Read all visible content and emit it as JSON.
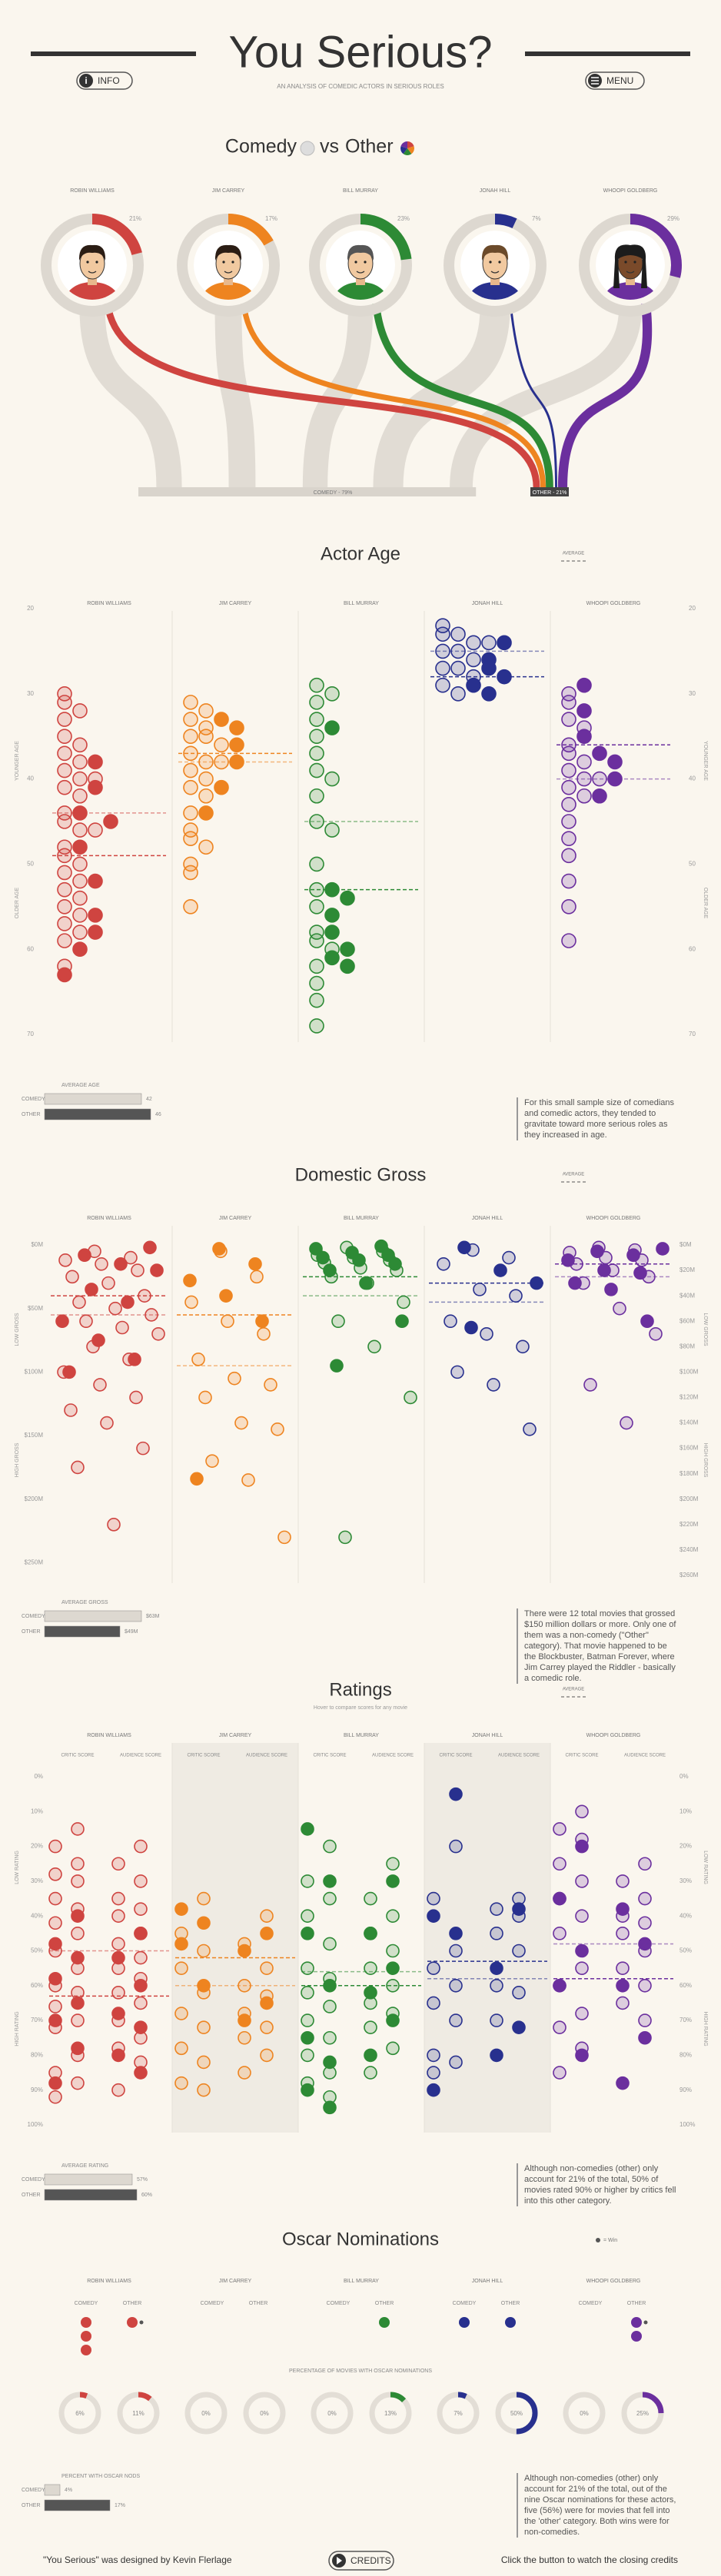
{
  "header": {
    "title": "You Serious?",
    "subtitle": "AN ANALYSIS OF COMEDIC ACTORS IN SERIOUS ROLES",
    "info": "INFO",
    "menu": "MENU"
  },
  "actors": [
    {
      "name": "ROBIN WILLIAMS",
      "color": "#cf4440"
    },
    {
      "name": "JIM CARREY",
      "color": "#ee8420"
    },
    {
      "name": "BILL MURRAY",
      "color": "#2d8a35"
    },
    {
      "name": "JONAH HILL",
      "color": "#28308e"
    },
    {
      "name": "WHOOPI GOLDBERG",
      "color": "#6b2f9e"
    }
  ],
  "comedy_vs_other": {
    "title_comedy": "Comedy",
    "title_vs": "vs",
    "title_other": "Other",
    "percent_other": [
      21,
      17,
      23,
      7,
      29
    ],
    "percent_labels": [
      "21%",
      "17%",
      "23%",
      "7%",
      "29%"
    ],
    "totals": [
      {
        "label": "COMEDY - 79%",
        "value": 79
      },
      {
        "label": "OTHER - 21%",
        "value": 21
      }
    ]
  },
  "actor_age": {
    "title": "Actor Age",
    "legend": "AVERAGE",
    "ylim": [
      20,
      70
    ],
    "yticks": [
      20,
      30,
      40,
      50,
      60,
      70
    ],
    "side_labels": [
      "YOUNGER AGE",
      "OLDER AGE"
    ],
    "series": [
      {
        "comedy": [
          30,
          31,
          32,
          33,
          35,
          36,
          37,
          38,
          39,
          40,
          40,
          41,
          42,
          44,
          45,
          46,
          46,
          48,
          49,
          50,
          51,
          52,
          53,
          54,
          55,
          56,
          57,
          58,
          59,
          62
        ],
        "other": [
          38,
          41,
          44,
          45,
          48,
          52,
          56,
          58,
          60,
          63
        ],
        "avg_comedy": 44,
        "avg_other": 49
      },
      {
        "comedy": [
          31,
          32,
          33,
          34,
          35,
          35,
          36,
          37,
          38,
          38,
          39,
          40,
          41,
          42,
          44,
          46,
          47,
          48,
          50,
          51,
          55
        ],
        "other": [
          33,
          34,
          36,
          38,
          41,
          44
        ],
        "avg_comedy": 38,
        "avg_other": 37
      },
      {
        "comedy": [
          29,
          30,
          31,
          33,
          35,
          37,
          39,
          40,
          42,
          45,
          46,
          50,
          53,
          55,
          58,
          59,
          60,
          62,
          64,
          66,
          69
        ],
        "other": [
          34,
          53,
          54,
          56,
          58,
          60,
          61,
          62
        ],
        "avg_comedy": 45,
        "avg_other": 53
      },
      {
        "comedy": [
          22,
          23,
          23,
          24,
          24,
          25,
          25,
          26,
          27,
          27,
          28,
          29,
          30
        ],
        "other": [
          24,
          26,
          27,
          28,
          29,
          30
        ],
        "avg_comedy": 25,
        "avg_other": 28
      },
      {
        "comedy": [
          30,
          31,
          33,
          34,
          36,
          37,
          38,
          39,
          40,
          40,
          41,
          42,
          43,
          45,
          47,
          49,
          52,
          55,
          59
        ],
        "other": [
          29,
          32,
          35,
          37,
          38,
          40,
          42
        ],
        "avg_comedy": 40,
        "avg_other": 36
      }
    ],
    "summary": {
      "title": "AVERAGE AGE",
      "rows": [
        {
          "name": "COMEDY",
          "value": 42
        },
        {
          "name": "OTHER",
          "value": 46
        }
      ]
    },
    "note": "For this small sample size of comedians and comedic actors, they tended to gravitate toward more serious roles as they increased in age."
  },
  "domestic_gross": {
    "title": "Domestic Gross",
    "legend": "AVERAGE",
    "ylim": [
      0,
      260
    ],
    "yticks": [
      {
        "value": 0,
        "label": "$0M"
      },
      {
        "value": 50,
        "label": "$50M"
      },
      {
        "value": 100,
        "label": "$100M"
      },
      {
        "value": 150,
        "label": "$150M"
      },
      {
        "value": 200,
        "label": "$200M"
      },
      {
        "value": 250,
        "label": "$250M"
      }
    ],
    "y2ticks": [
      {
        "value": 0,
        "label": "$0M"
      },
      {
        "value": 20,
        "label": "$20M"
      },
      {
        "value": 40,
        "label": "$40M"
      },
      {
        "value": 60,
        "label": "$60M"
      },
      {
        "value": 80,
        "label": "$80M"
      },
      {
        "value": 100,
        "label": "$100M"
      },
      {
        "value": 120,
        "label": "$120M"
      },
      {
        "value": 140,
        "label": "$140M"
      },
      {
        "value": 160,
        "label": "$160M"
      },
      {
        "value": 180,
        "label": "$180M"
      },
      {
        "value": 200,
        "label": "$200M"
      },
      {
        "value": 220,
        "label": "$220M"
      },
      {
        "value": 240,
        "label": "$240M"
      },
      {
        "value": 260,
        "label": "$260M"
      }
    ],
    "side_labels": [
      "LOW GROSS",
      "HIGH GROSS"
    ],
    "series": [
      {
        "comedy": [
          5,
          10,
          12,
          15,
          20,
          25,
          30,
          40,
          45,
          50,
          55,
          60,
          65,
          70,
          80,
          90,
          100,
          110,
          120,
          130,
          140,
          160,
          175,
          220
        ],
        "other": [
          2,
          8,
          15,
          20,
          35,
          45,
          60,
          75,
          90,
          100
        ],
        "avg_comedy": 55,
        "avg_other": 40
      },
      {
        "comedy": [
          5,
          25,
          45,
          60,
          70,
          90,
          105,
          110,
          120,
          140,
          145,
          170,
          185,
          230
        ],
        "other": [
          3,
          15,
          28,
          40,
          60,
          184
        ],
        "avg_comedy": 95,
        "avg_other": 55
      },
      {
        "comedy": [
          2,
          5,
          8,
          10,
          12,
          14,
          18,
          20,
          25,
          30,
          45,
          60,
          80,
          120,
          230
        ],
        "other": [
          1,
          3,
          6,
          8,
          10,
          12,
          15,
          20,
          30,
          60,
          95
        ],
        "avg_comedy": 40,
        "avg_other": 25
      },
      {
        "comedy": [
          4,
          10,
          15,
          35,
          40,
          60,
          70,
          80,
          100,
          110,
          145
        ],
        "other": [
          2,
          20,
          30,
          65
        ],
        "avg_comedy": 45,
        "avg_other": 30
      },
      {
        "comedy": [
          2,
          4,
          6,
          10,
          12,
          15,
          20,
          25,
          30,
          50,
          70,
          110,
          140
        ],
        "other": [
          3,
          5,
          8,
          12,
          20,
          22,
          30,
          35,
          60
        ],
        "avg_comedy": 25,
        "avg_other": 15
      }
    ],
    "summary": {
      "title": "AVERAGE GROSS",
      "rows": [
        {
          "name": "COMEDY",
          "value": 63,
          "value_label": "$63M"
        },
        {
          "name": "OTHER",
          "value": 49,
          "value_label": "$49M"
        }
      ]
    },
    "note": "There were 12 total movies that grossed $150 million dollars or more. Only one of them was a non-comedy (\"Other\" category). That movie happened to be the Blockbuster, Batman Forever, where Jim Carrey played the Riddler - basically a comedic role."
  },
  "ratings": {
    "title": "Ratings",
    "subtitle": "Hover to compare scores for any movie",
    "legend": "AVERAGE",
    "columns": [
      "CRITIC SCORE",
      "AUDIENCE SCORE"
    ],
    "ylim": [
      0,
      100
    ],
    "yticks": [
      {
        "value": 0,
        "label": "0%"
      },
      {
        "value": 10,
        "label": "10%"
      },
      {
        "value": 20,
        "label": "20%"
      },
      {
        "value": 30,
        "label": "30%"
      },
      {
        "value": 40,
        "label": "40%"
      },
      {
        "value": 50,
        "label": "50%"
      },
      {
        "value": 60,
        "label": "60%"
      },
      {
        "value": 70,
        "label": "70%"
      },
      {
        "value": 80,
        "label": "80%"
      },
      {
        "value": 90,
        "label": "90%"
      },
      {
        "value": 100,
        "label": "100%"
      }
    ],
    "side_labels": [
      "LOW RATING",
      "HIGH RATING"
    ],
    "series": [
      {
        "critic": {
          "comedy": [
            15,
            20,
            25,
            28,
            30,
            35,
            38,
            42,
            45,
            50,
            55,
            60,
            62,
            66,
            70,
            72,
            80,
            85,
            88,
            92
          ],
          "other": [
            40,
            48,
            52,
            58,
            65,
            70,
            78,
            88
          ]
        },
        "audience": {
          "comedy": [
            20,
            25,
            30,
            35,
            38,
            40,
            45,
            48,
            52,
            55,
            58,
            62,
            65,
            70,
            75,
            78,
            82,
            90
          ],
          "other": [
            45,
            52,
            60,
            68,
            72,
            80,
            85
          ]
        },
        "avg_comedy": 50,
        "avg_other": 63
      },
      {
        "critic": {
          "comedy": [
            35,
            45,
            50,
            55,
            62,
            68,
            72,
            78,
            82,
            88,
            90
          ],
          "other": [
            38,
            42,
            48,
            60
          ]
        },
        "audience": {
          "comedy": [
            40,
            48,
            55,
            60,
            63,
            68,
            72,
            75,
            80,
            85
          ],
          "other": [
            45,
            50,
            65,
            70
          ]
        },
        "avg_comedy": 60,
        "avg_other": 52
      },
      {
        "critic": {
          "comedy": [
            20,
            30,
            35,
            40,
            48,
            55,
            58,
            62,
            66,
            70,
            75,
            80,
            85,
            88,
            92
          ],
          "other": [
            15,
            30,
            45,
            60,
            75,
            82,
            90,
            95
          ]
        },
        "audience": {
          "comedy": [
            25,
            35,
            40,
            45,
            50,
            55,
            60,
            65,
            68,
            72,
            78,
            85
          ],
          "other": [
            30,
            45,
            55,
            62,
            70,
            80
          ]
        },
        "avg_comedy": 56,
        "avg_other": 60
      },
      {
        "critic": {
          "comedy": [
            20,
            35,
            50,
            55,
            60,
            65,
            70,
            80,
            82,
            85
          ],
          "other": [
            5,
            40,
            45,
            90
          ]
        },
        "audience": {
          "comedy": [
            35,
            38,
            40,
            45,
            50,
            60,
            62,
            70
          ],
          "other": [
            38,
            55,
            72,
            80
          ]
        },
        "avg_comedy": 58,
        "avg_other": 53
      },
      {
        "critic": {
          "comedy": [
            10,
            15,
            18,
            25,
            30,
            35,
            40,
            45,
            55,
            60,
            68,
            72,
            78,
            85
          ],
          "other": [
            20,
            35,
            50,
            60,
            80
          ]
        },
        "audience": {
          "comedy": [
            25,
            30,
            35,
            40,
            42,
            45,
            50,
            55,
            60,
            65,
            70
          ],
          "other": [
            38,
            48,
            60,
            75,
            88
          ]
        },
        "avg_comedy": 48,
        "avg_other": 58
      }
    ],
    "summary": {
      "title": "AVERAGE RATING",
      "rows": [
        {
          "name": "COMEDY",
          "value": 57,
          "value_label": "57%"
        },
        {
          "name": "OTHER",
          "value": 60,
          "value_label": "60%"
        }
      ]
    },
    "note": "Although non-comedies (other) only account for 21% of the total, 50% of movies rated 90% or higher by critics fell into this other category."
  },
  "oscars": {
    "title": "Oscar Nominations",
    "legend": "= Win",
    "columns": [
      "COMEDY",
      "OTHER"
    ],
    "series": [
      {
        "comedy": 3,
        "other": 1,
        "wins_other": 1,
        "percent_comedy": 6,
        "percent_other": 11,
        "label_comedy": "6%",
        "label_other": "11%"
      },
      {
        "comedy": 0,
        "other": 0,
        "wins_other": 0,
        "percent_comedy": 0,
        "percent_other": 0,
        "label_comedy": "0%",
        "label_other": "0%"
      },
      {
        "comedy": 0,
        "other": 1,
        "wins_other": 0,
        "percent_comedy": 0,
        "percent_other": 13,
        "label_comedy": "0%",
        "label_other": "13%"
      },
      {
        "comedy": 1,
        "other": 1,
        "wins_other": 0,
        "percent_comedy": 7,
        "percent_other": 50,
        "label_comedy": "7%",
        "label_other": "50%"
      },
      {
        "comedy": 0,
        "other": 2,
        "wins_other": 1,
        "percent_comedy": 0,
        "percent_other": 25,
        "label_comedy": "0%",
        "label_other": "25%"
      }
    ],
    "percent_title": "PERCENTAGE OF MOVIES WITH OSCAR NOMINATIONS",
    "summary": {
      "title": "PERCENT WITH OSCAR NODS",
      "rows": [
        {
          "name": "COMEDY",
          "value": 4,
          "value_label": "4%"
        },
        {
          "name": "OTHER",
          "value": 17,
          "value_label": "17%"
        }
      ]
    },
    "note": "Although non-comedies (other) only account for 21% of the total, out of the nine Oscar nominations for these actors, five (56%) were for movies that fell into the 'other' category. Both wins were for non-comedies."
  },
  "footer": {
    "credit": "\"You Serious\" was designed by Kevin Flerlage",
    "button": "CREDITS",
    "cta": "Click the button to watch the closing credits"
  }
}
